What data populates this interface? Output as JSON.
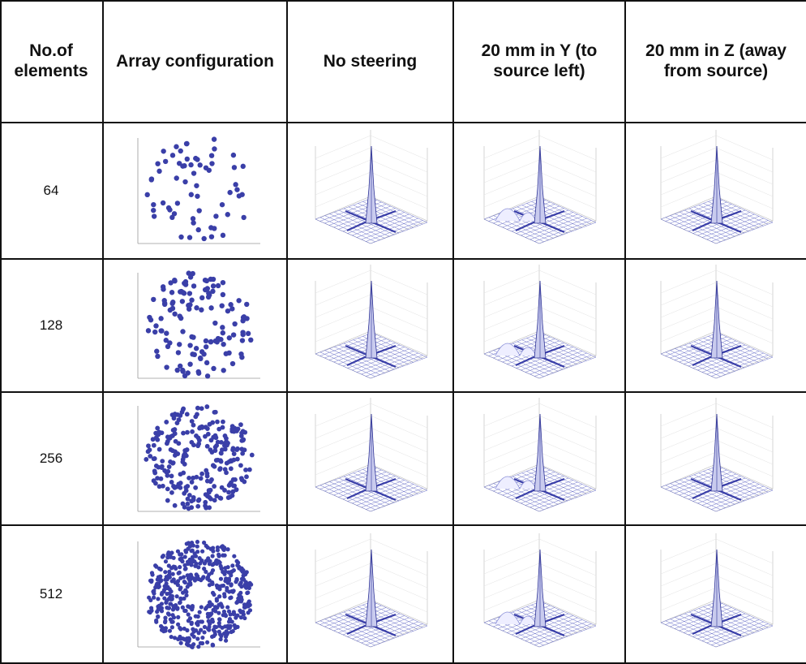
{
  "table": {
    "header": [
      "No.of elements",
      "Array configuration",
      "No steering",
      "20 mm in Y (to source left)",
      "20 mm in Z (away from source)"
    ],
    "rows": [
      "64",
      "128",
      "256",
      "512"
    ]
  }
}
